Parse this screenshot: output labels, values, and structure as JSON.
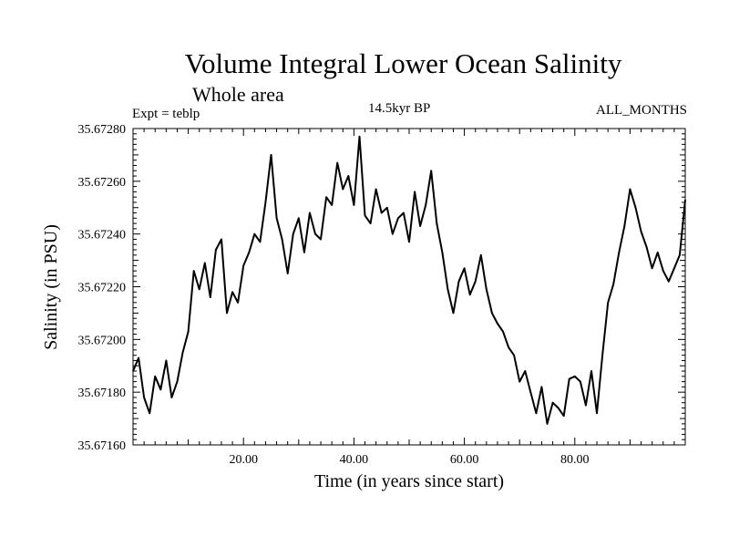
{
  "chart_data": {
    "type": "line",
    "title": "Volume Integral Lower Ocean Salinity",
    "subtitle": "Whole area",
    "annotations": {
      "left": "Expt = teblp",
      "center": "14.5kyr BP",
      "right": "ALL_MONTHS"
    },
    "xlabel": "Time (in years since start)",
    "ylabel": "Salinity (in PSU)",
    "xlim": [
      0,
      100
    ],
    "ylim": [
      35.6716,
      35.6728
    ],
    "xticks": [
      20,
      40,
      60,
      80
    ],
    "xtick_labels": [
      "20.00",
      "40.00",
      "60.00",
      "80.00"
    ],
    "yticks": [
      35.6716,
      35.6718,
      35.672,
      35.6722,
      35.6724,
      35.6726,
      35.6728
    ],
    "ytick_labels": [
      "35.67160",
      "35.67180",
      "35.67200",
      "35.67220",
      "35.67240",
      "35.67260",
      "35.67280"
    ],
    "series": [
      {
        "name": "Salinity",
        "x": [
          0,
          1,
          2,
          3,
          4,
          5,
          6,
          7,
          8,
          9,
          10,
          11,
          12,
          13,
          14,
          15,
          16,
          17,
          18,
          19,
          20,
          21,
          22,
          23,
          24,
          25,
          26,
          27,
          28,
          29,
          30,
          31,
          32,
          33,
          34,
          35,
          36,
          37,
          38,
          39,
          40,
          41,
          42,
          43,
          44,
          45,
          46,
          47,
          48,
          49,
          50,
          51,
          52,
          53,
          54,
          55,
          56,
          57,
          58,
          59,
          60,
          61,
          62,
          63,
          64,
          65,
          66,
          67,
          68,
          69,
          70,
          71,
          72,
          73,
          74,
          75,
          76,
          77,
          78,
          79,
          80,
          81,
          82,
          83,
          84,
          85,
          86,
          87,
          88,
          89,
          90,
          91,
          92,
          93,
          94,
          95,
          96,
          97,
          98,
          99,
          100
        ],
        "values": [
          35.67188,
          35.67193,
          35.67178,
          35.67172,
          35.67186,
          35.67181,
          35.67192,
          35.67178,
          35.67184,
          35.67195,
          35.67203,
          35.67226,
          35.67219,
          35.67229,
          35.67216,
          35.67234,
          35.67238,
          35.6721,
          35.67218,
          35.67214,
          35.67228,
          35.67233,
          35.6724,
          35.67237,
          35.67252,
          35.6727,
          35.67246,
          35.67238,
          35.67225,
          35.6724,
          35.67246,
          35.67233,
          35.67248,
          35.6724,
          35.67238,
          35.67254,
          35.67251,
          35.67267,
          35.67257,
          35.67262,
          35.67251,
          35.67277,
          35.67247,
          35.67244,
          35.67257,
          35.67248,
          35.6725,
          35.6724,
          35.67246,
          35.67248,
          35.67237,
          35.67256,
          35.67243,
          35.67251,
          35.67264,
          35.67244,
          35.67233,
          35.67219,
          35.6721,
          35.67222,
          35.67227,
          35.67217,
          35.67222,
          35.67232,
          35.67219,
          35.6721,
          35.67206,
          35.67203,
          35.67197,
          35.67194,
          35.67184,
          35.67188,
          35.6718,
          35.67172,
          35.67182,
          35.67168,
          35.67176,
          35.67174,
          35.67171,
          35.67185,
          35.67186,
          35.67184,
          35.67175,
          35.67188,
          35.67172,
          35.67194,
          35.67214,
          35.67221,
          35.67233,
          35.67243,
          35.67257,
          35.6725,
          35.67241,
          35.67235,
          35.67227,
          35.67233,
          35.67226,
          35.67222,
          35.67227,
          35.67232,
          35.67253
        ]
      }
    ]
  }
}
